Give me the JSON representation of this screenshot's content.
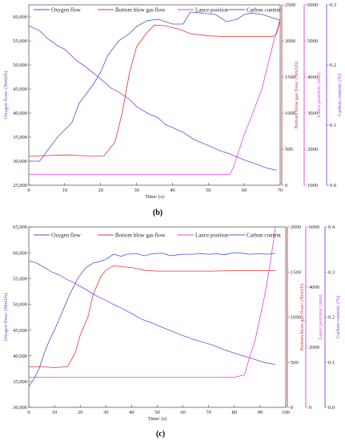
{
  "chart_data": [
    {
      "type": "line",
      "panel_label": "(b)",
      "xlabel": "Time/ (s)",
      "x_ticks": [
        "0",
        "10",
        "20",
        "30",
        "40",
        "50",
        "60",
        "70"
      ],
      "xlim": [
        0,
        70
      ],
      "axes": [
        {
          "id": "oxy",
          "label": "Oxygen flow/ (Nm3/h)",
          "color": "#4a56c8",
          "lim": [
            25000,
            62500
          ],
          "ticks": [
            "25,000",
            "30,000",
            "35,000",
            "40,000",
            "45,000",
            "50,000",
            "55,000",
            "60,000"
          ],
          "tick_values": [
            25000,
            30000,
            35000,
            40000,
            45000,
            50000,
            55000,
            60000
          ]
        },
        {
          "id": "bottom",
          "label": "Bottom blow gas flow/ (Nm3/h)",
          "color": "#e03535",
          "lim": [
            0,
            2500
          ],
          "ticks": [
            "0",
            "500",
            "1000",
            "1500",
            "2000",
            "2500"
          ],
          "tick_values": [
            0,
            500,
            1000,
            1500,
            2000,
            2500
          ]
        },
        {
          "id": "lance",
          "label": "Lance position/ (mm)",
          "color": "#e040e0",
          "lim": [
            1000,
            6000
          ],
          "ticks": [
            "1000",
            "2000",
            "3000",
            "4000",
            "5000",
            "6000"
          ],
          "tick_values": [
            1000,
            2000,
            3000,
            4000,
            5000,
            6000
          ]
        },
        {
          "id": "carbon",
          "label": "Carbon content/ (%)",
          "color": "#8a3fd8",
          "lim": [
            0,
            0.3
          ],
          "ticks": [
            "0.0",
            "0.1",
            "0.2",
            "0.3"
          ],
          "tick_values": [
            0,
            0.1,
            0.2,
            0.3
          ]
        }
      ],
      "series": [
        {
          "name": "Oxygen flow",
          "axis": "oxy",
          "color": "#4a56c8",
          "x": [
            0,
            3,
            5,
            8,
            12,
            14,
            18,
            20,
            22,
            25,
            28,
            30,
            33,
            36,
            40,
            43,
            45,
            48,
            52,
            55,
            58,
            60,
            62,
            65,
            68,
            70
          ],
          "y": [
            30000,
            30000,
            32000,
            35000,
            38000,
            42000,
            46000,
            48500,
            52000,
            55000,
            56500,
            58000,
            59200,
            59500,
            58500,
            58500,
            61000,
            60800,
            60500,
            59000,
            59500,
            60500,
            60800,
            60500,
            59800,
            59300
          ]
        },
        {
          "name": "Bottom blow gas flow",
          "axis": "bottom",
          "color": "#e03535",
          "x": [
            0,
            5,
            10,
            15,
            18,
            21,
            24,
            26,
            28,
            30,
            33,
            35,
            38,
            42,
            45,
            50,
            55,
            60,
            65,
            68,
            69,
            70
          ],
          "y": [
            400,
            410,
            420,
            410,
            400,
            410,
            600,
            1000,
            1550,
            1920,
            2120,
            2220,
            2210,
            2160,
            2100,
            2070,
            2060,
            2060,
            2060,
            2060,
            2100,
            2280
          ]
        },
        {
          "name": "Lance position",
          "axis": "lance",
          "color": "#e040e0",
          "x": [
            0,
            10,
            20,
            30,
            40,
            50,
            56,
            57,
            60,
            62,
            65,
            68,
            70
          ],
          "y": [
            1300,
            1300,
            1300,
            1300,
            1300,
            1300,
            1300,
            1500,
            2400,
            2900,
            3700,
            4900,
            5600
          ]
        },
        {
          "name": "Carbon content",
          "axis": "carbon",
          "color": "#8a3fd8",
          "x": [
            0,
            3,
            5,
            8,
            10,
            13,
            16,
            20,
            23,
            25,
            28,
            30,
            33,
            36,
            38,
            40,
            43,
            46,
            50,
            53,
            56,
            60,
            63,
            66,
            69
          ],
          "y": [
            0.265,
            0.257,
            0.245,
            0.232,
            0.226,
            0.209,
            0.196,
            0.177,
            0.161,
            0.155,
            0.143,
            0.131,
            0.12,
            0.112,
            0.101,
            0.096,
            0.088,
            0.076,
            0.066,
            0.058,
            0.052,
            0.042,
            0.036,
            0.029,
            0.025
          ]
        }
      ]
    },
    {
      "type": "line",
      "panel_label": "(c)",
      "xlabel": "Time/ (s)",
      "x_ticks": [
        "0",
        "10",
        "20",
        "30",
        "40",
        "50",
        "60",
        "70",
        "80",
        "90",
        "100"
      ],
      "xlim": [
        0,
        100
      ],
      "axes": [
        {
          "id": "oxy",
          "label": "Oxygen flow/ (Nm3/h)",
          "color": "#4a56c8",
          "lim": [
            30000,
            65000
          ],
          "ticks": [
            "30,000",
            "35,000",
            "40,000",
            "45,000",
            "50,000",
            "55,000",
            "60,000",
            "65,000"
          ],
          "tick_values": [
            30000,
            35000,
            40000,
            45000,
            50000,
            55000,
            60000,
            65000
          ]
        },
        {
          "id": "bottom",
          "label": "Bottom blow gas flow/ (Nm3/h)",
          "color": "#e03535",
          "lim": [
            0,
            2000
          ],
          "ticks": [
            "0",
            "500",
            "1000",
            "1500",
            "2000"
          ],
          "tick_values": [
            0,
            500,
            1000,
            1500,
            2000
          ]
        },
        {
          "id": "lance",
          "label": "Lance position/ (mm)",
          "color": "#e040e0",
          "lim": [
            0,
            6000
          ],
          "ticks": [
            "0",
            "2000",
            "4000",
            "6000"
          ],
          "tick_values": [
            0,
            2000,
            4000,
            6000
          ]
        },
        {
          "id": "carbon",
          "label": "Carbon content/ (%)",
          "color": "#8a3fd8",
          "lim": [
            0,
            0.4
          ],
          "ticks": [
            "0.0",
            "0.1",
            "0.2",
            "0.3",
            "0.4"
          ],
          "tick_values": [
            0,
            0.1,
            0.2,
            0.3,
            0.4
          ]
        }
      ],
      "series": [
        {
          "name": "Oxygen flow",
          "axis": "oxy",
          "color": "#4a56c8",
          "x": [
            0,
            2,
            4,
            6,
            8,
            10,
            13,
            16,
            19,
            22,
            25,
            27,
            30,
            33,
            36,
            38,
            42,
            45,
            48,
            52,
            55,
            58,
            60,
            63,
            67,
            70,
            73,
            76,
            80,
            83,
            86,
            90,
            93,
            96
          ],
          "y": [
            34000,
            35500,
            37500,
            40500,
            43000,
            45000,
            48500,
            52000,
            55000,
            57000,
            58000,
            58200,
            58700,
            59700,
            59300,
            59700,
            59800,
            59400,
            59800,
            59900,
            59400,
            59600,
            59700,
            59700,
            59800,
            59700,
            59800,
            59600,
            60000,
            59900,
            59700,
            59800,
            59700,
            59900
          ]
        },
        {
          "name": "Bottom blow gas flow",
          "axis": "bottom",
          "color": "#e03535",
          "x": [
            0,
            5,
            10,
            15,
            18,
            20,
            23,
            25,
            28,
            30,
            33,
            36,
            40,
            45,
            50,
            55,
            60,
            70,
            80,
            90,
            96
          ],
          "y": [
            450,
            450,
            440,
            450,
            600,
            800,
            1000,
            1250,
            1450,
            1520,
            1570,
            1560,
            1550,
            1520,
            1510,
            1510,
            1510,
            1510,
            1515,
            1515,
            1515
          ]
        },
        {
          "name": "Lance position",
          "axis": "lance",
          "color": "#e040e0",
          "x": [
            0,
            10,
            20,
            30,
            40,
            50,
            60,
            70,
            80,
            84,
            86,
            88,
            90,
            92,
            94,
            96
          ],
          "y": [
            1000,
            1000,
            1000,
            1000,
            1000,
            1000,
            1000,
            1000,
            1000,
            1080,
            1700,
            2200,
            3000,
            3800,
            4800,
            6000
          ]
        },
        {
          "name": "Carbon content",
          "axis": "carbon",
          "color": "#8a3fd8",
          "x": [
            0,
            3,
            6,
            9,
            12,
            15,
            18,
            21,
            24,
            27,
            30,
            33,
            36,
            40,
            44,
            48,
            52,
            56,
            60,
            64,
            68,
            72,
            76,
            80,
            84,
            88,
            92,
            96
          ],
          "y": [
            0.325,
            0.32,
            0.31,
            0.3,
            0.293,
            0.283,
            0.275,
            0.265,
            0.255,
            0.245,
            0.237,
            0.228,
            0.22,
            0.208,
            0.195,
            0.187,
            0.177,
            0.168,
            0.159,
            0.151,
            0.144,
            0.137,
            0.128,
            0.12,
            0.113,
            0.106,
            0.099,
            0.095
          ]
        }
      ]
    }
  ]
}
